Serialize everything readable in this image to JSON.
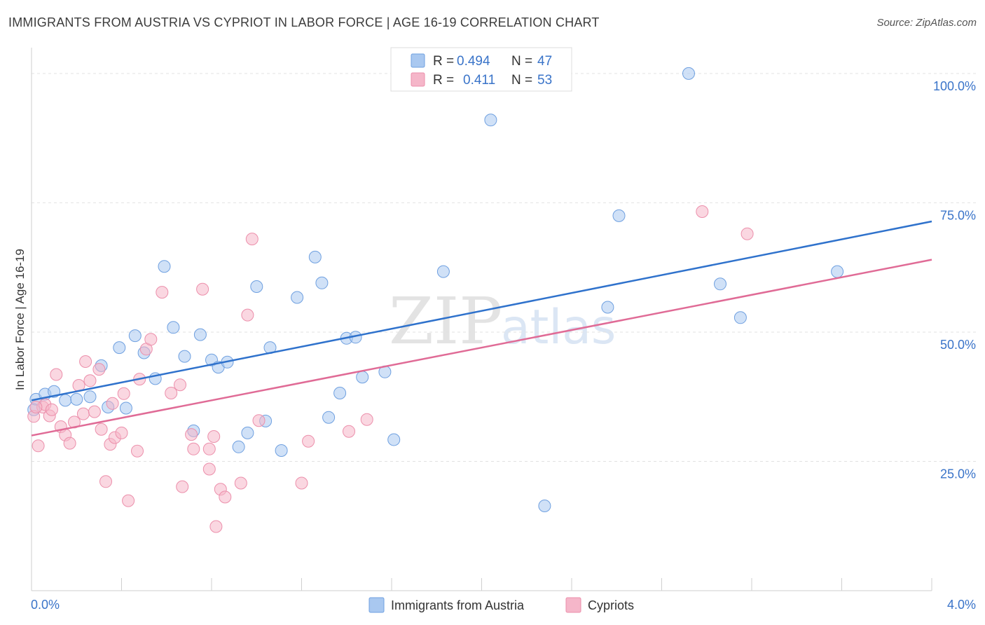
{
  "header": {
    "title": "IMMIGRANTS FROM AUSTRIA VS CYPRIOT IN LABOR FORCE | AGE 16-19 CORRELATION CHART",
    "source": "Source: ZipAtlas.com"
  },
  "watermark": {
    "zip": "ZIP",
    "atlas": "atlas"
  },
  "legend": {
    "rows": [
      {
        "r_label": "R = ",
        "r_value": "0.494",
        "n_label": "N = ",
        "n_value": "47",
        "color": "#a9c8f0"
      },
      {
        "r_label": "R = ",
        "r_value": "0.411",
        "n_label": "N = ",
        "n_value": "53",
        "color": "#f5b6c9"
      }
    ]
  },
  "bottom_legend": [
    {
      "label": "Immigrants from Austria",
      "color": "#a9c8f0"
    },
    {
      "label": "Cypriots",
      "color": "#f5b6c9"
    }
  ],
  "chart_data": {
    "type": "scatter",
    "title": "IMMIGRANTS FROM AUSTRIA VS CYPRIOT IN LABOR FORCE | AGE 16-19 CORRELATION CHART",
    "xlabel": "",
    "ylabel": "In Labor Force | Age 16-19",
    "xlim": [
      0,
      4.0
    ],
    "ylim": [
      0,
      105
    ],
    "x_tick_labels": [
      "0.0%",
      "4.0%"
    ],
    "y_ticks": [
      25,
      50,
      75,
      100
    ],
    "y_tick_labels": [
      "25.0%",
      "50.0%",
      "75.0%",
      "100.0%"
    ],
    "grid": true,
    "legend_position": "top-center",
    "series": [
      {
        "name": "Immigrants from Austria",
        "color": "#a9c8f0",
        "stroke": "#6fa0e0",
        "line_color": "#2f72cc",
        "trend": {
          "x0": 0.0,
          "y0": 36.8,
          "x1": 4.0,
          "y1": 71.4
        },
        "points": [
          [
            0.02,
            37.0
          ],
          [
            0.06,
            38.0
          ],
          [
            0.1,
            38.5
          ],
          [
            0.15,
            36.8
          ],
          [
            0.2,
            37.0
          ],
          [
            0.26,
            37.5
          ],
          [
            0.31,
            43.5
          ],
          [
            0.34,
            35.5
          ],
          [
            0.39,
            47.0
          ],
          [
            0.42,
            35.3
          ],
          [
            0.46,
            49.3
          ],
          [
            0.5,
            46.0
          ],
          [
            0.55,
            41.0
          ],
          [
            0.59,
            62.7
          ],
          [
            0.63,
            50.9
          ],
          [
            0.68,
            45.3
          ],
          [
            0.72,
            30.9
          ],
          [
            0.75,
            49.5
          ],
          [
            0.8,
            44.6
          ],
          [
            0.83,
            43.2
          ],
          [
            0.87,
            44.2
          ],
          [
            0.92,
            27.8
          ],
          [
            0.96,
            30.5
          ],
          [
            1.0,
            58.8
          ],
          [
            1.04,
            32.8
          ],
          [
            1.06,
            47.0
          ],
          [
            1.11,
            27.1
          ],
          [
            1.18,
            56.7
          ],
          [
            1.26,
            64.5
          ],
          [
            1.29,
            59.5
          ],
          [
            1.32,
            33.5
          ],
          [
            1.37,
            38.2
          ],
          [
            1.4,
            48.8
          ],
          [
            1.44,
            49.0
          ],
          [
            1.47,
            41.3
          ],
          [
            1.57,
            42.3
          ],
          [
            1.61,
            29.2
          ],
          [
            1.83,
            61.7
          ],
          [
            2.04,
            91.0
          ],
          [
            2.28,
            16.4
          ],
          [
            2.56,
            54.8
          ],
          [
            2.61,
            72.5
          ],
          [
            2.92,
            100.0
          ],
          [
            3.06,
            59.3
          ],
          [
            3.15,
            52.8
          ],
          [
            3.58,
            61.7
          ],
          [
            0.01,
            35.0
          ]
        ]
      },
      {
        "name": "Cypriots",
        "color": "#f5b6c9",
        "stroke": "#ec8fab",
        "line_color": "#e06b96",
        "trend": {
          "x0": 0.0,
          "y0": 30.0,
          "x1": 4.0,
          "y1": 64.0
        },
        "points": [
          [
            0.01,
            33.7
          ],
          [
            0.03,
            28.0
          ],
          [
            0.05,
            35.5
          ],
          [
            0.06,
            36.0
          ],
          [
            0.08,
            33.8
          ],
          [
            0.09,
            35.0
          ],
          [
            0.11,
            41.8
          ],
          [
            0.13,
            31.7
          ],
          [
            0.15,
            30.1
          ],
          [
            0.17,
            28.5
          ],
          [
            0.19,
            32.6
          ],
          [
            0.21,
            39.7
          ],
          [
            0.23,
            34.2
          ],
          [
            0.24,
            44.3
          ],
          [
            0.26,
            40.6
          ],
          [
            0.28,
            34.6
          ],
          [
            0.3,
            42.8
          ],
          [
            0.31,
            31.2
          ],
          [
            0.33,
            21.1
          ],
          [
            0.35,
            28.3
          ],
          [
            0.36,
            36.2
          ],
          [
            0.37,
            29.6
          ],
          [
            0.4,
            30.5
          ],
          [
            0.41,
            38.1
          ],
          [
            0.43,
            17.4
          ],
          [
            0.47,
            27.0
          ],
          [
            0.48,
            40.9
          ],
          [
            0.51,
            46.7
          ],
          [
            0.53,
            48.6
          ],
          [
            0.58,
            57.7
          ],
          [
            0.62,
            38.2
          ],
          [
            0.66,
            39.8
          ],
          [
            0.67,
            20.1
          ],
          [
            0.71,
            30.2
          ],
          [
            0.72,
            27.4
          ],
          [
            0.76,
            58.3
          ],
          [
            0.79,
            23.5
          ],
          [
            0.79,
            27.4
          ],
          [
            0.81,
            29.8
          ],
          [
            0.82,
            12.4
          ],
          [
            0.84,
            19.6
          ],
          [
            0.86,
            18.1
          ],
          [
            0.93,
            20.8
          ],
          [
            0.96,
            53.3
          ],
          [
            0.98,
            68.0
          ],
          [
            1.01,
            32.9
          ],
          [
            1.2,
            20.8
          ],
          [
            1.23,
            28.9
          ],
          [
            1.41,
            30.8
          ],
          [
            1.49,
            33.1
          ],
          [
            2.98,
            73.3
          ],
          [
            3.18,
            69.0
          ],
          [
            0.02,
            35.5
          ]
        ]
      }
    ]
  }
}
